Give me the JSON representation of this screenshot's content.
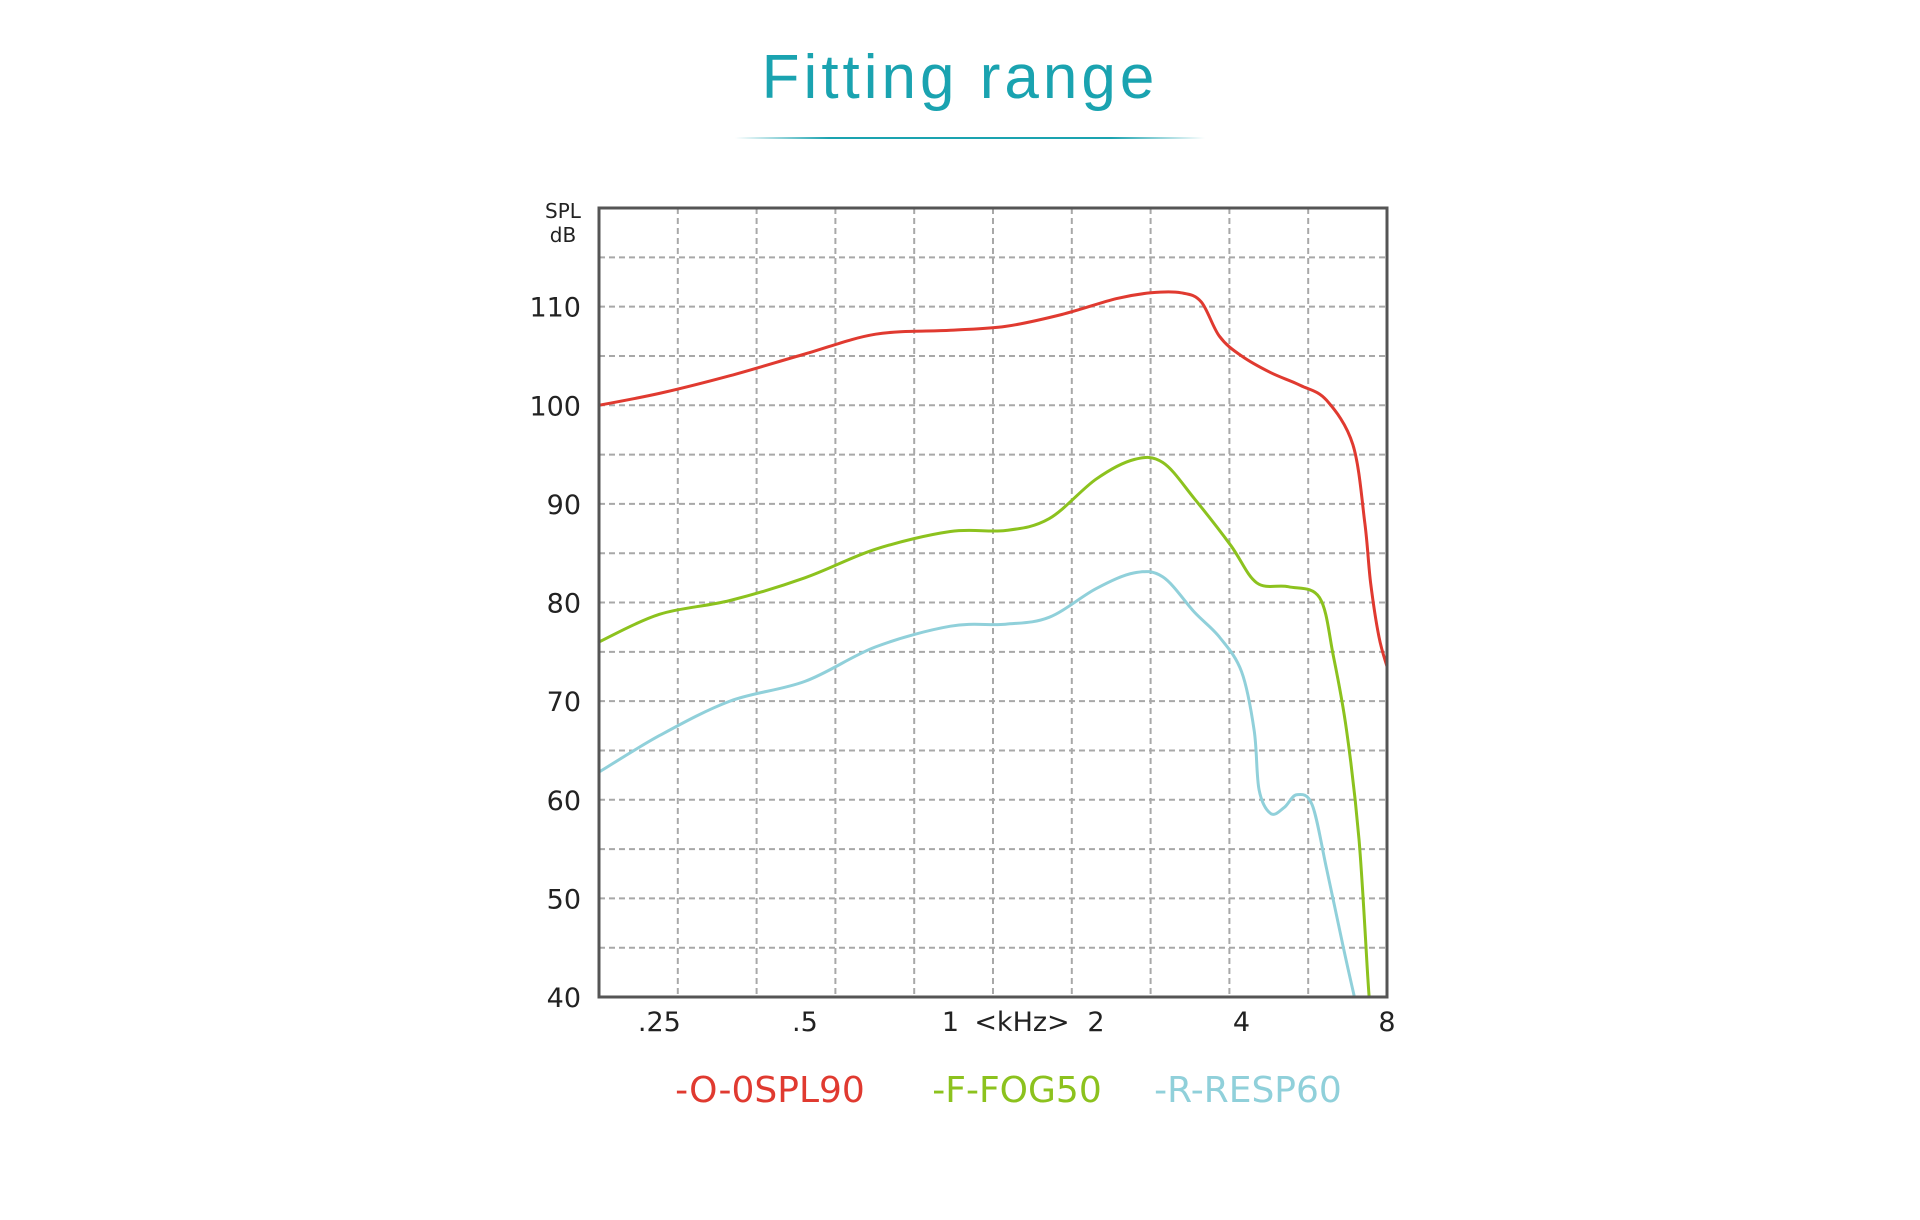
{
  "title": "Fitting range",
  "chart_data": {
    "type": "line",
    "title": "Fitting range",
    "ylabel": "SPL dB",
    "ylabel_lines": [
      "SPL",
      "dB"
    ],
    "xlabel": "<kHz>",
    "x_scale": "log2",
    "xlim": [
      0.1875,
      8
    ],
    "ylim": [
      40,
      120
    ],
    "grid": true,
    "xticks": [
      {
        "value": 0.25,
        "label": ".25"
      },
      {
        "value": 0.5,
        "label": ".5"
      },
      {
        "value": 1,
        "label": "1"
      },
      {
        "value": 2,
        "label": "2"
      },
      {
        "value": 4,
        "label": "4"
      },
      {
        "value": 8,
        "label": "8"
      }
    ],
    "yticks": [
      40,
      50,
      60,
      70,
      80,
      90,
      100,
      110
    ],
    "legend_placement": "bottom",
    "series": [
      {
        "name": "-O-0SPL90",
        "color": "#e03a30",
        "points": [
          [
            0.1875,
            100
          ],
          [
            0.25,
            101.2
          ],
          [
            0.35,
            103
          ],
          [
            0.5,
            105.2
          ],
          [
            0.7,
            107.2
          ],
          [
            1.0,
            107.6
          ],
          [
            1.3,
            108
          ],
          [
            1.7,
            109.2
          ],
          [
            2.2,
            110.8
          ],
          [
            2.6,
            111.4
          ],
          [
            3.0,
            111.4
          ],
          [
            3.3,
            110.5
          ],
          [
            3.6,
            107
          ],
          [
            4.0,
            105
          ],
          [
            4.6,
            103.3
          ],
          [
            5.3,
            102
          ],
          [
            6.0,
            100.5
          ],
          [
            6.8,
            96
          ],
          [
            7.2,
            88
          ],
          [
            7.4,
            82
          ],
          [
            7.7,
            76.5
          ],
          [
            8.0,
            73.5
          ]
        ]
      },
      {
        "name": "-F-FOG50",
        "color": "#8cc21e",
        "points": [
          [
            0.1875,
            76
          ],
          [
            0.25,
            78.8
          ],
          [
            0.35,
            80.2
          ],
          [
            0.5,
            82.5
          ],
          [
            0.7,
            85.4
          ],
          [
            1.0,
            87.2
          ],
          [
            1.3,
            87.3
          ],
          [
            1.6,
            88.5
          ],
          [
            2.0,
            92.5
          ],
          [
            2.4,
            94.5
          ],
          [
            2.75,
            94.2
          ],
          [
            3.2,
            90.5
          ],
          [
            3.8,
            85.8
          ],
          [
            4.3,
            82
          ],
          [
            5.0,
            81.6
          ],
          [
            5.8,
            80.5
          ],
          [
            6.2,
            74.5
          ],
          [
            6.6,
            67
          ],
          [
            7.0,
            56
          ],
          [
            7.3,
            42
          ],
          [
            7.35,
            40
          ]
        ]
      },
      {
        "name": "-R-RESP60",
        "color": "#90d0da",
        "points": [
          [
            0.1875,
            62.8
          ],
          [
            0.25,
            66.5
          ],
          [
            0.35,
            70
          ],
          [
            0.5,
            72
          ],
          [
            0.7,
            75.5
          ],
          [
            1.0,
            77.6
          ],
          [
            1.3,
            77.8
          ],
          [
            1.6,
            78.5
          ],
          [
            2.0,
            81.4
          ],
          [
            2.4,
            83
          ],
          [
            2.75,
            82.6
          ],
          [
            3.2,
            79
          ],
          [
            3.6,
            76.5
          ],
          [
            4.0,
            73
          ],
          [
            4.25,
            67
          ],
          [
            4.35,
            61
          ],
          [
            4.6,
            58.6
          ],
          [
            4.9,
            59.2
          ],
          [
            5.2,
            60.5
          ],
          [
            5.6,
            59.5
          ],
          [
            6.0,
            53
          ],
          [
            6.5,
            45
          ],
          [
            6.85,
            40
          ]
        ]
      }
    ]
  }
}
